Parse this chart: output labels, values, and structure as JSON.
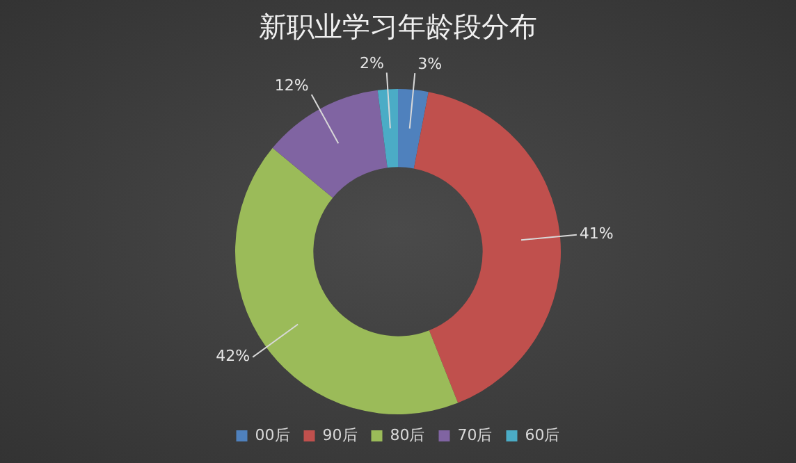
{
  "chart_data": {
    "type": "donut",
    "title": "新职业学习年龄段分布",
    "categories": [
      "00后",
      "90后",
      "80后",
      "70后",
      "60后"
    ],
    "values": [
      3,
      41,
      42,
      12,
      2
    ],
    "colors": [
      "#4f81bd",
      "#c0504d",
      "#9bbb59",
      "#8064a2",
      "#4bacc6"
    ],
    "value_labels": [
      "3%",
      "41%",
      "42%",
      "12%",
      "2%"
    ],
    "legend": "bottom"
  }
}
